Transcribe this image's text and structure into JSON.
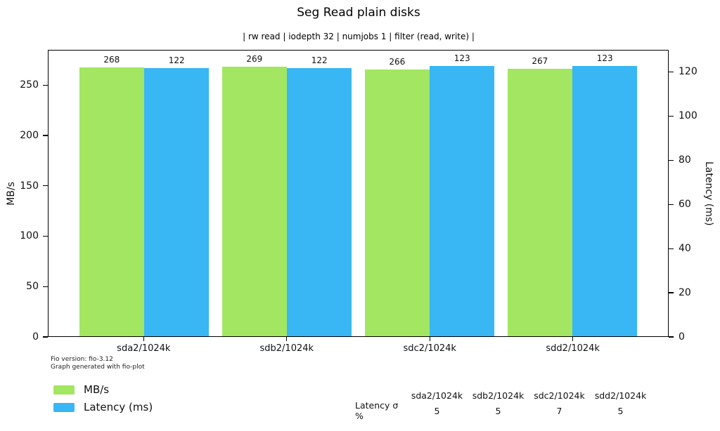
{
  "title": "Seg Read plain disks",
  "subtitle": "| rw read | iodepth 32 | numjobs 1 | filter (read, write) |",
  "footer": {
    "line1": "Fio version: fio-3.12",
    "line2": "Graph generated with fio-plot"
  },
  "legend": [
    {
      "label": "MB/s",
      "color": "#a2e661"
    },
    {
      "label": "Latency (ms)",
      "color": "#38b7f4"
    }
  ],
  "table": {
    "row_label": "Latency σ %",
    "columns": [
      "sda2/1024k",
      "sdb2/1024k",
      "sdc2/1024k",
      "sdd2/1024k"
    ],
    "values": [
      5,
      5,
      7,
      5
    ]
  },
  "chart_data": {
    "type": "bar",
    "title": "Seg Read plain disks",
    "subtitle": "| rw read | iodepth 32 | numjobs 1 | filter (read, write) |",
    "categories": [
      "sda2/1024k",
      "sdb2/1024k",
      "sdc2/1024k",
      "sdd2/1024k"
    ],
    "series": [
      {
        "name": "MB/s",
        "key": "mbs",
        "axis": "left",
        "color": "#a2e661",
        "values": [
          268,
          269,
          266,
          267
        ]
      },
      {
        "name": "Latency (ms)",
        "key": "latency",
        "axis": "right",
        "color": "#38b7f4",
        "values": [
          122,
          122,
          123,
          123
        ]
      }
    ],
    "left_axis": {
      "label": "MB/s",
      "ticks": [
        0,
        50,
        100,
        150,
        200,
        250
      ],
      "max": 285
    },
    "right_axis": {
      "label": "Latency (ms)",
      "ticks": [
        0,
        20,
        40,
        60,
        80,
        100,
        120
      ],
      "max": 130
    },
    "grid": false,
    "legend_position": "bottom-left",
    "bar_value_labels": true,
    "stats_row": {
      "label": "Latency σ %",
      "values": [
        5,
        5,
        7,
        5
      ]
    }
  }
}
